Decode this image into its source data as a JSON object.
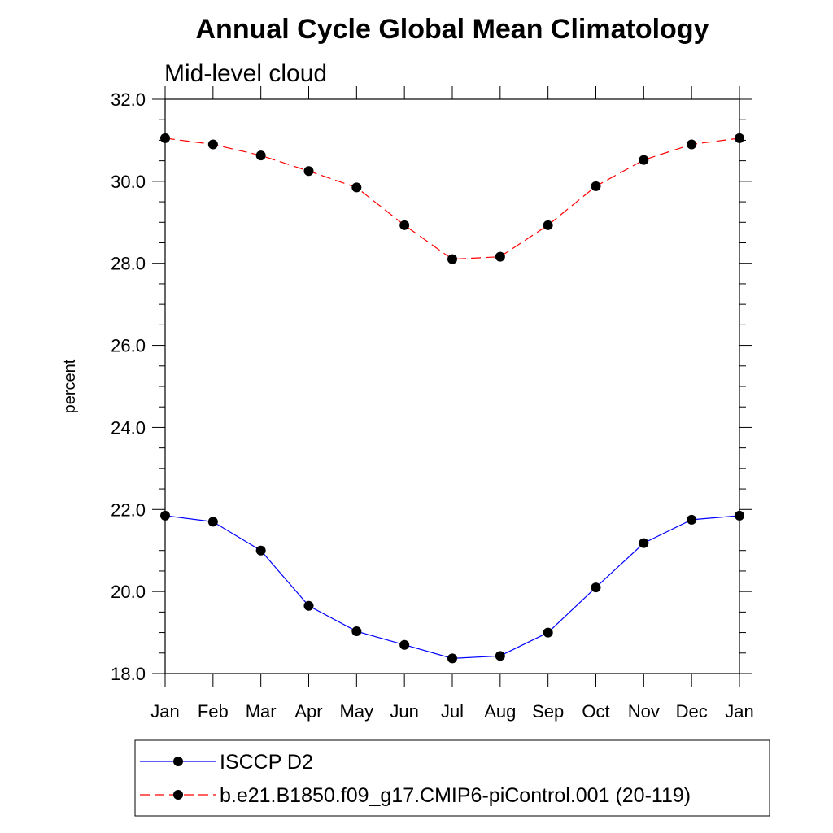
{
  "chart_data": {
    "type": "line",
    "title": "Annual Cycle Global Mean Climatology",
    "subtitle": "Mid-level cloud",
    "xlabel": "",
    "ylabel": "percent",
    "ylim": [
      18.0,
      32.0
    ],
    "y_ticks": [
      "18.0",
      "20.0",
      "22.0",
      "24.0",
      "26.0",
      "28.0",
      "30.0",
      "32.0"
    ],
    "categories": [
      "Jan",
      "Feb",
      "Mar",
      "Apr",
      "May",
      "Jun",
      "Jul",
      "Aug",
      "Sep",
      "Oct",
      "Nov",
      "Dec",
      "Jan"
    ],
    "grid": false,
    "legend_position": "bottom",
    "series": [
      {
        "name": "ISCCP D2",
        "color": "#0000ff",
        "dash": "solid",
        "marker": "filled-circle",
        "values": [
          21.85,
          21.7,
          21.0,
          19.65,
          19.03,
          18.7,
          18.37,
          18.43,
          19.0,
          20.1,
          21.18,
          21.75,
          21.85
        ]
      },
      {
        "name": "b.e21.B1850.f09_g17.CMIP6-piControl.001 (20-119)",
        "color": "#ff0000",
        "dash": "dashed",
        "marker": "filled-circle",
        "values": [
          31.05,
          30.9,
          30.63,
          30.25,
          29.85,
          28.93,
          28.1,
          28.16,
          28.93,
          29.88,
          30.52,
          30.9,
          31.05
        ]
      }
    ]
  }
}
